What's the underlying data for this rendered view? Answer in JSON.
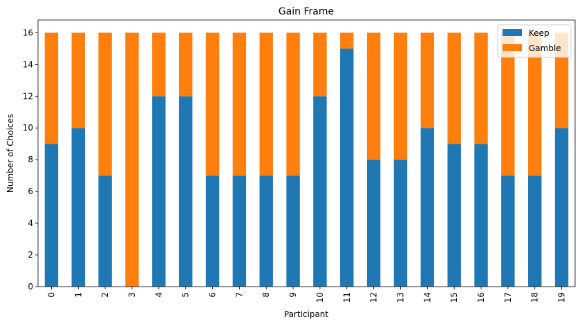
{
  "chart_data": {
    "type": "bar",
    "stacked": true,
    "title": "Gain Frame",
    "xlabel": "Participant",
    "ylabel": "Number of Choices",
    "ylim": [
      0,
      16.8
    ],
    "yticks": [
      0,
      2,
      4,
      6,
      8,
      10,
      12,
      14,
      16
    ],
    "categories": [
      "0",
      "1",
      "2",
      "3",
      "4",
      "5",
      "6",
      "7",
      "8",
      "9",
      "10",
      "11",
      "12",
      "13",
      "14",
      "15",
      "16",
      "17",
      "18",
      "19"
    ],
    "series": [
      {
        "name": "Keep",
        "color": "#1f77b4",
        "values": [
          9,
          10,
          7,
          0,
          12,
          12,
          7,
          7,
          7,
          7,
          12,
          15,
          8,
          8,
          10,
          9,
          9,
          7,
          7,
          10
        ]
      },
      {
        "name": "Gamble",
        "color": "#ff7f0e",
        "values": [
          7,
          6,
          9,
          16,
          4,
          4,
          9,
          9,
          9,
          9,
          4,
          1,
          8,
          8,
          6,
          7,
          7,
          9,
          9,
          6
        ]
      }
    ],
    "legend_position": "top-right",
    "grid": false
  }
}
